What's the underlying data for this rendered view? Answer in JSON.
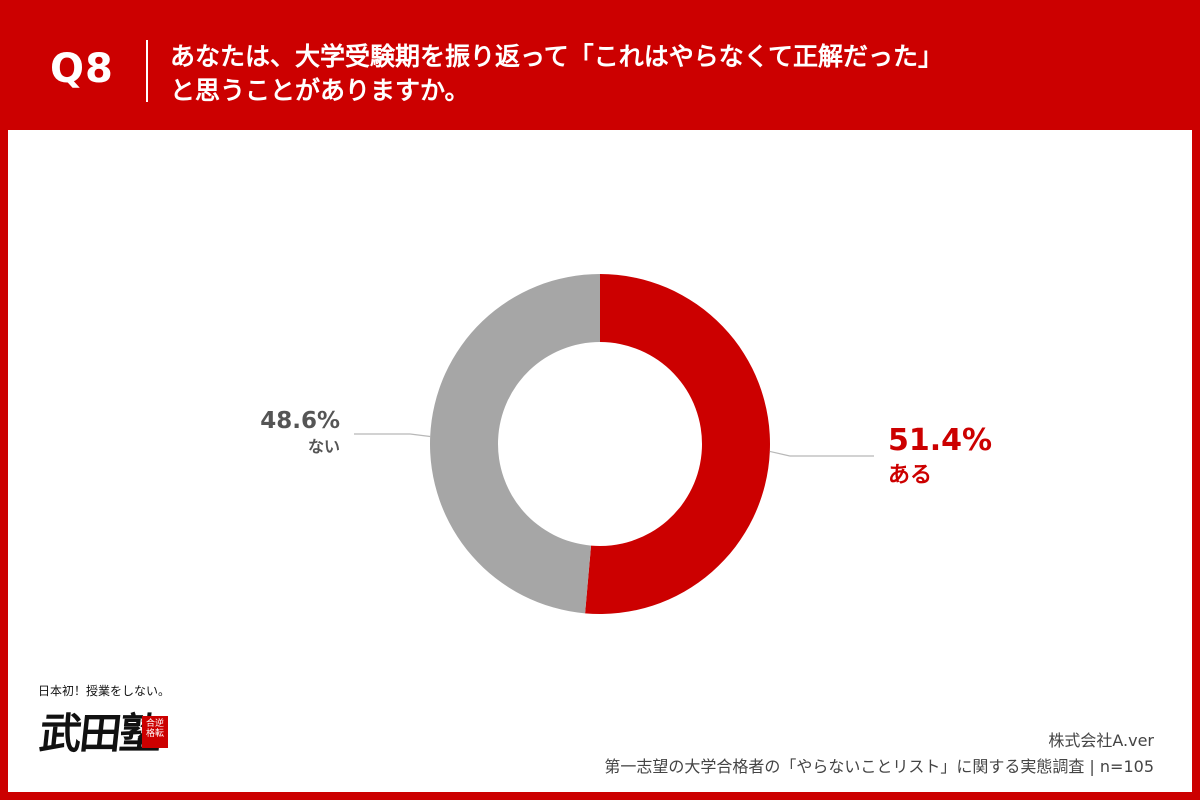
{
  "header": {
    "question_number": "Q8",
    "title_line1": "あなたは、大学受験期を振り返って「これはやらなくて正解だった」",
    "title_line2": "と思うことがありますか。"
  },
  "chart_data": {
    "type": "pie",
    "donut": true,
    "slices": [
      {
        "label": "ある",
        "value": 51.4,
        "display": "51.4%",
        "color": "#cc0000"
      },
      {
        "label": "ない",
        "value": 48.6,
        "display": "48.6%",
        "color": "#a6a6a6"
      }
    ]
  },
  "logo": {
    "tagline": "日本初！授業をしない。",
    "brand": "武田塾",
    "stamp": "合逆格転"
  },
  "footer": {
    "company": "株式会社A.ver",
    "survey": "第一志望の大学合格者の「やらないことリスト」に関する実態調査 | n=105"
  }
}
